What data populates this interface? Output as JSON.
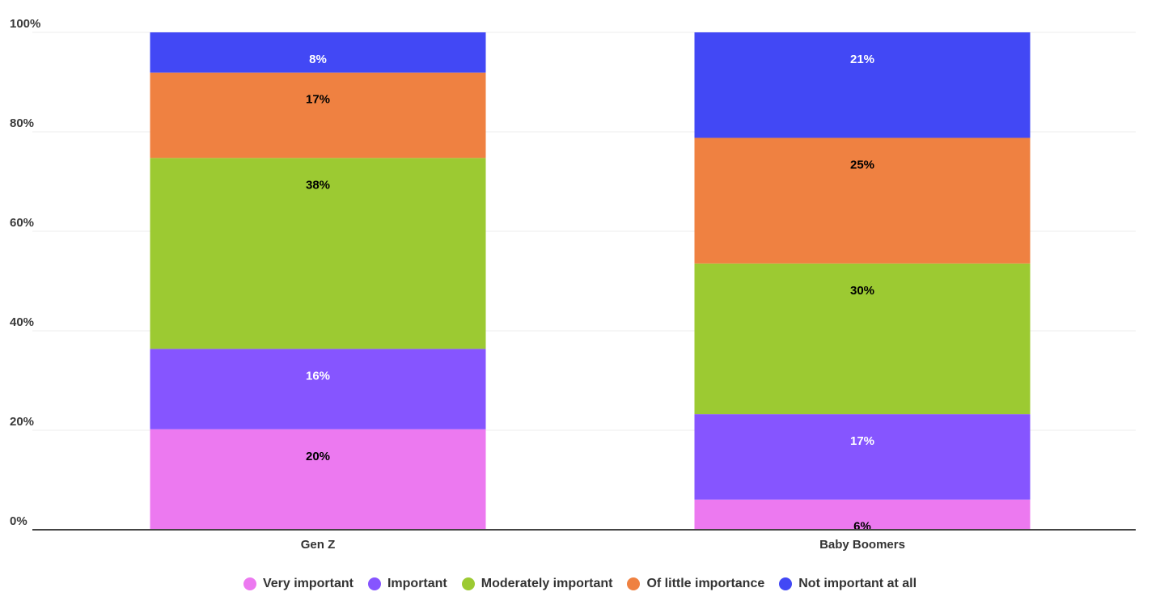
{
  "chart_data": {
    "type": "bar",
    "stacked": true,
    "categories": [
      "Gen Z",
      "Baby Boomers"
    ],
    "series": [
      {
        "name": "Very important",
        "values": [
          20,
          6
        ],
        "labels": [
          "20%",
          "6%"
        ],
        "color": "#ec79f0",
        "label_color": "#000000"
      },
      {
        "name": "Important",
        "values": [
          16,
          17
        ],
        "labels": [
          "16%",
          "17%"
        ],
        "color": "#8655ff",
        "label_color": "#ffffff"
      },
      {
        "name": "Moderately important",
        "values": [
          38,
          30
        ],
        "labels": [
          "38%",
          "30%"
        ],
        "color": "#9cca32",
        "label_color": "#000000"
      },
      {
        "name": "Of little importance",
        "values": [
          17,
          25
        ],
        "labels": [
          "17%",
          "25%"
        ],
        "color": "#ef8141",
        "label_color": "#000000"
      },
      {
        "name": "Not important at all",
        "values": [
          8,
          21
        ],
        "labels": [
          "8%",
          "21%"
        ],
        "color": "#4248f5",
        "label_color": "#ffffff"
      }
    ],
    "ylim": [
      0,
      100
    ],
    "yticks": [
      0,
      20,
      40,
      60,
      80,
      100
    ],
    "ytick_labels": [
      "0%",
      "20%",
      "40%",
      "60%",
      "80%",
      "100%"
    ],
    "grid": true,
    "legend_position": "bottom-center",
    "xlabel": "",
    "ylabel": ""
  }
}
